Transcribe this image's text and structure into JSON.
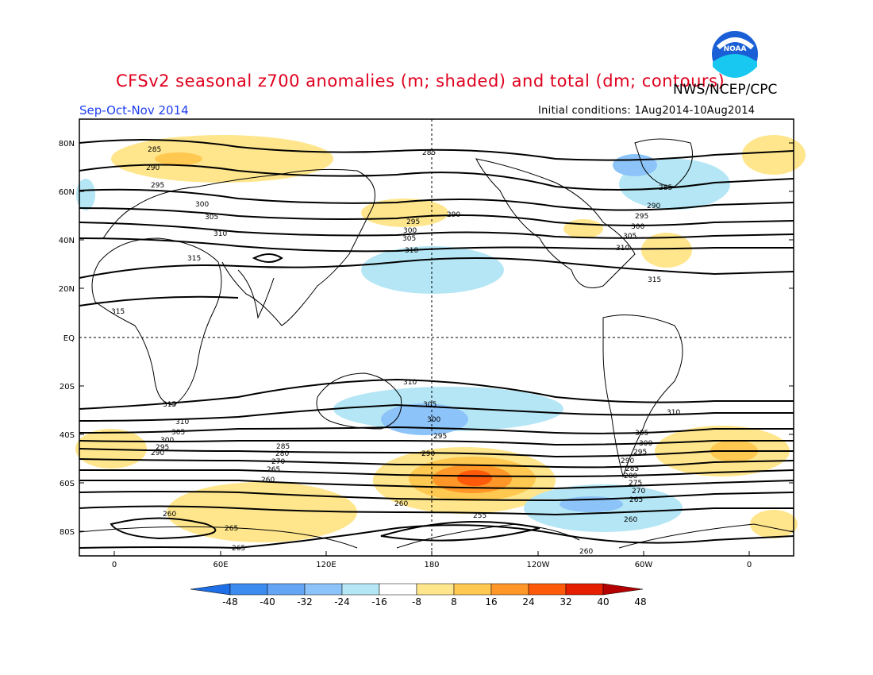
{
  "header": {
    "title": "CFSv2 seasonal z700 anomalies (m; shaded) and total (dm; contours)",
    "agency": "NWS/NCEP/CPC",
    "season": "Sep-Oct-Nov 2014",
    "initial_conditions": "Initial conditions: 1Aug2014-10Aug2014",
    "logo_text": "NOAA"
  },
  "axes": {
    "lat_labels": [
      "80N",
      "60N",
      "40N",
      "20N",
      "EQ",
      "20S",
      "40S",
      "60S",
      "80S"
    ],
    "lon_labels": [
      "0",
      "60E",
      "120E",
      "180",
      "120W",
      "60W",
      "0"
    ]
  },
  "contour_labels": [
    "285",
    "290",
    "295",
    "300",
    "305",
    "310",
    "315",
    "260",
    "265",
    "270",
    "275",
    "280",
    "255"
  ],
  "colorbar": {
    "labels": [
      "-48",
      "-40",
      "-32",
      "-24",
      "-16",
      "-8",
      "8",
      "16",
      "24",
      "32",
      "40",
      "48"
    ],
    "colors": [
      "#1e6ee6",
      "#3c8cf0",
      "#64a5f5",
      "#8cc3f8",
      "#b4e6f5",
      "#ffffff",
      "#ffe68c",
      "#ffc850",
      "#ff9628",
      "#ff5a0a",
      "#e61e00",
      "#b40000"
    ]
  }
}
